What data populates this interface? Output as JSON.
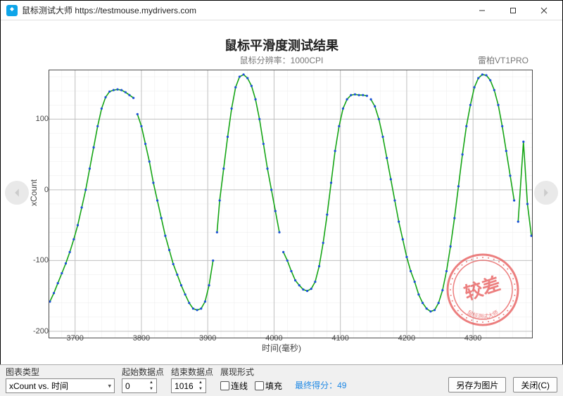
{
  "window": {
    "title": "鼠标测试大师 https://testmouse.mydrivers.com",
    "icon_bg": "#0ea5e9"
  },
  "chart": {
    "type": "line+scatter",
    "title": "鼠标平滑度测试结果",
    "subtitle": "鼠标分辨率：1000CPI",
    "device": "雷柏VT1PRO",
    "ylabel": "xCount",
    "xlabel": "时间(毫秒)",
    "xlim": [
      3660,
      4390
    ],
    "ylim": [
      -210,
      170
    ],
    "xticks": [
      3700,
      3800,
      3900,
      4000,
      4100,
      4200,
      4300
    ],
    "yticks": [
      -200,
      -100,
      0,
      100
    ],
    "grid_minor_step_x": 20,
    "grid_minor_step_y": 20,
    "grid_major_color": "#c0c0c0",
    "grid_minor_color": "#ececec",
    "line_color": "#15a515",
    "line_width": 1.6,
    "point_color": "#1a4fd6",
    "point_radius": 1.6,
    "bg": "#ffffff",
    "series": [
      {
        "x": 3662,
        "y": -158
      },
      {
        "x": 3668,
        "y": -146
      },
      {
        "x": 3674,
        "y": -132
      },
      {
        "x": 3680,
        "y": -118
      },
      {
        "x": 3686,
        "y": -104
      },
      {
        "x": 3692,
        "y": -88
      },
      {
        "x": 3698,
        "y": -70
      },
      {
        "x": 3704,
        "y": -50
      },
      {
        "x": 3710,
        "y": -25
      },
      {
        "x": 3716,
        "y": 0
      },
      {
        "x": 3722,
        "y": 30
      },
      {
        "x": 3728,
        "y": 60
      },
      {
        "x": 3734,
        "y": 90
      },
      {
        "x": 3740,
        "y": 115
      },
      {
        "x": 3746,
        "y": 131
      },
      {
        "x": 3752,
        "y": 139
      },
      {
        "x": 3758,
        "y": 141
      },
      {
        "x": 3764,
        "y": 142
      },
      {
        "x": 3770,
        "y": 141
      },
      {
        "x": 3776,
        "y": 138
      },
      {
        "x": 3782,
        "y": 134
      },
      {
        "x": 3788,
        "y": 130
      },
      {
        "x": 3794,
        "y": 107,
        "break": true
      },
      {
        "x": 3800,
        "y": 90
      },
      {
        "x": 3806,
        "y": 65
      },
      {
        "x": 3812,
        "y": 40
      },
      {
        "x": 3818,
        "y": 10
      },
      {
        "x": 3824,
        "y": -15
      },
      {
        "x": 3830,
        "y": -40
      },
      {
        "x": 3836,
        "y": -65
      },
      {
        "x": 3842,
        "y": -85
      },
      {
        "x": 3848,
        "y": -105
      },
      {
        "x": 3854,
        "y": -120
      },
      {
        "x": 3860,
        "y": -135
      },
      {
        "x": 3866,
        "y": -148
      },
      {
        "x": 3872,
        "y": -160
      },
      {
        "x": 3878,
        "y": -168
      },
      {
        "x": 3884,
        "y": -170
      },
      {
        "x": 3890,
        "y": -168
      },
      {
        "x": 3896,
        "y": -158
      },
      {
        "x": 3902,
        "y": -135
      },
      {
        "x": 3908,
        "y": -100
      },
      {
        "x": 3914,
        "y": -60,
        "break": true
      },
      {
        "x": 3918,
        "y": -15
      },
      {
        "x": 3924,
        "y": 30
      },
      {
        "x": 3930,
        "y": 75
      },
      {
        "x": 3936,
        "y": 115
      },
      {
        "x": 3942,
        "y": 145
      },
      {
        "x": 3948,
        "y": 160
      },
      {
        "x": 3954,
        "y": 163
      },
      {
        "x": 3960,
        "y": 158
      },
      {
        "x": 3966,
        "y": 147
      },
      {
        "x": 3972,
        "y": 128
      },
      {
        "x": 3978,
        "y": 100
      },
      {
        "x": 3984,
        "y": 65
      },
      {
        "x": 3990,
        "y": 30
      },
      {
        "x": 3996,
        "y": 0
      },
      {
        "x": 4002,
        "y": -30
      },
      {
        "x": 4008,
        "y": -60
      },
      {
        "x": 4014,
        "y": -88,
        "break": true
      },
      {
        "x": 4020,
        "y": -100
      },
      {
        "x": 4026,
        "y": -115
      },
      {
        "x": 4032,
        "y": -128
      },
      {
        "x": 4038,
        "y": -135
      },
      {
        "x": 4044,
        "y": -141
      },
      {
        "x": 4050,
        "y": -143
      },
      {
        "x": 4056,
        "y": -140
      },
      {
        "x": 4062,
        "y": -130
      },
      {
        "x": 4068,
        "y": -108
      },
      {
        "x": 4074,
        "y": -75
      },
      {
        "x": 4080,
        "y": -35
      },
      {
        "x": 4086,
        "y": 10
      },
      {
        "x": 4092,
        "y": 55
      },
      {
        "x": 4098,
        "y": 90
      },
      {
        "x": 4104,
        "y": 115
      },
      {
        "x": 4110,
        "y": 128
      },
      {
        "x": 4116,
        "y": 134
      },
      {
        "x": 4122,
        "y": 135
      },
      {
        "x": 4128,
        "y": 134
      },
      {
        "x": 4134,
        "y": 134
      },
      {
        "x": 4140,
        "y": 133
      },
      {
        "x": 4146,
        "y": 128,
        "break": true
      },
      {
        "x": 4152,
        "y": 118
      },
      {
        "x": 4158,
        "y": 100
      },
      {
        "x": 4164,
        "y": 75
      },
      {
        "x": 4170,
        "y": 45
      },
      {
        "x": 4176,
        "y": 15
      },
      {
        "x": 4182,
        "y": -15
      },
      {
        "x": 4188,
        "y": -45
      },
      {
        "x": 4194,
        "y": -70
      },
      {
        "x": 4200,
        "y": -95
      },
      {
        "x": 4206,
        "y": -115
      },
      {
        "x": 4212,
        "y": -130
      },
      {
        "x": 4218,
        "y": -148
      },
      {
        "x": 4224,
        "y": -160
      },
      {
        "x": 4230,
        "y": -168
      },
      {
        "x": 4236,
        "y": -172
      },
      {
        "x": 4242,
        "y": -170
      },
      {
        "x": 4248,
        "y": -160
      },
      {
        "x": 4254,
        "y": -142
      },
      {
        "x": 4260,
        "y": -115
      },
      {
        "x": 4266,
        "y": -80
      },
      {
        "x": 4272,
        "y": -40
      },
      {
        "x": 4278,
        "y": 5
      },
      {
        "x": 4284,
        "y": 50
      },
      {
        "x": 4290,
        "y": 90
      },
      {
        "x": 4296,
        "y": 120
      },
      {
        "x": 4302,
        "y": 145
      },
      {
        "x": 4308,
        "y": 158
      },
      {
        "x": 4314,
        "y": 163
      },
      {
        "x": 4320,
        "y": 162
      },
      {
        "x": 4326,
        "y": 155
      },
      {
        "x": 4332,
        "y": 141
      },
      {
        "x": 4338,
        "y": 120
      },
      {
        "x": 4344,
        "y": 90
      },
      {
        "x": 4350,
        "y": 55
      },
      {
        "x": 4356,
        "y": 20
      },
      {
        "x": 4362,
        "y": -15
      },
      {
        "x": 4368,
        "y": -45,
        "break": true
      },
      {
        "x": 4376,
        "y": 68
      },
      {
        "x": 4382,
        "y": -20
      },
      {
        "x": 4388,
        "y": -65
      }
    ]
  },
  "stamp": {
    "text": "较差",
    "sub": "鼠标测试大师",
    "color": "#e54a4a"
  },
  "controls": {
    "chart_type": {
      "label": "图表类型",
      "value": "xCount vs. 时间"
    },
    "start_index": {
      "label": "起始数据点",
      "value": "0"
    },
    "end_index": {
      "label": "结束数据点",
      "value": "1016"
    },
    "display": {
      "label": "展现形式",
      "connect": "连线",
      "fill": "填充",
      "connect_checked": false,
      "fill_checked": false
    },
    "score": {
      "label": "最终得分：",
      "value": "49"
    },
    "save_btn": "另存为图片",
    "close_btn": "关闭(C)"
  }
}
